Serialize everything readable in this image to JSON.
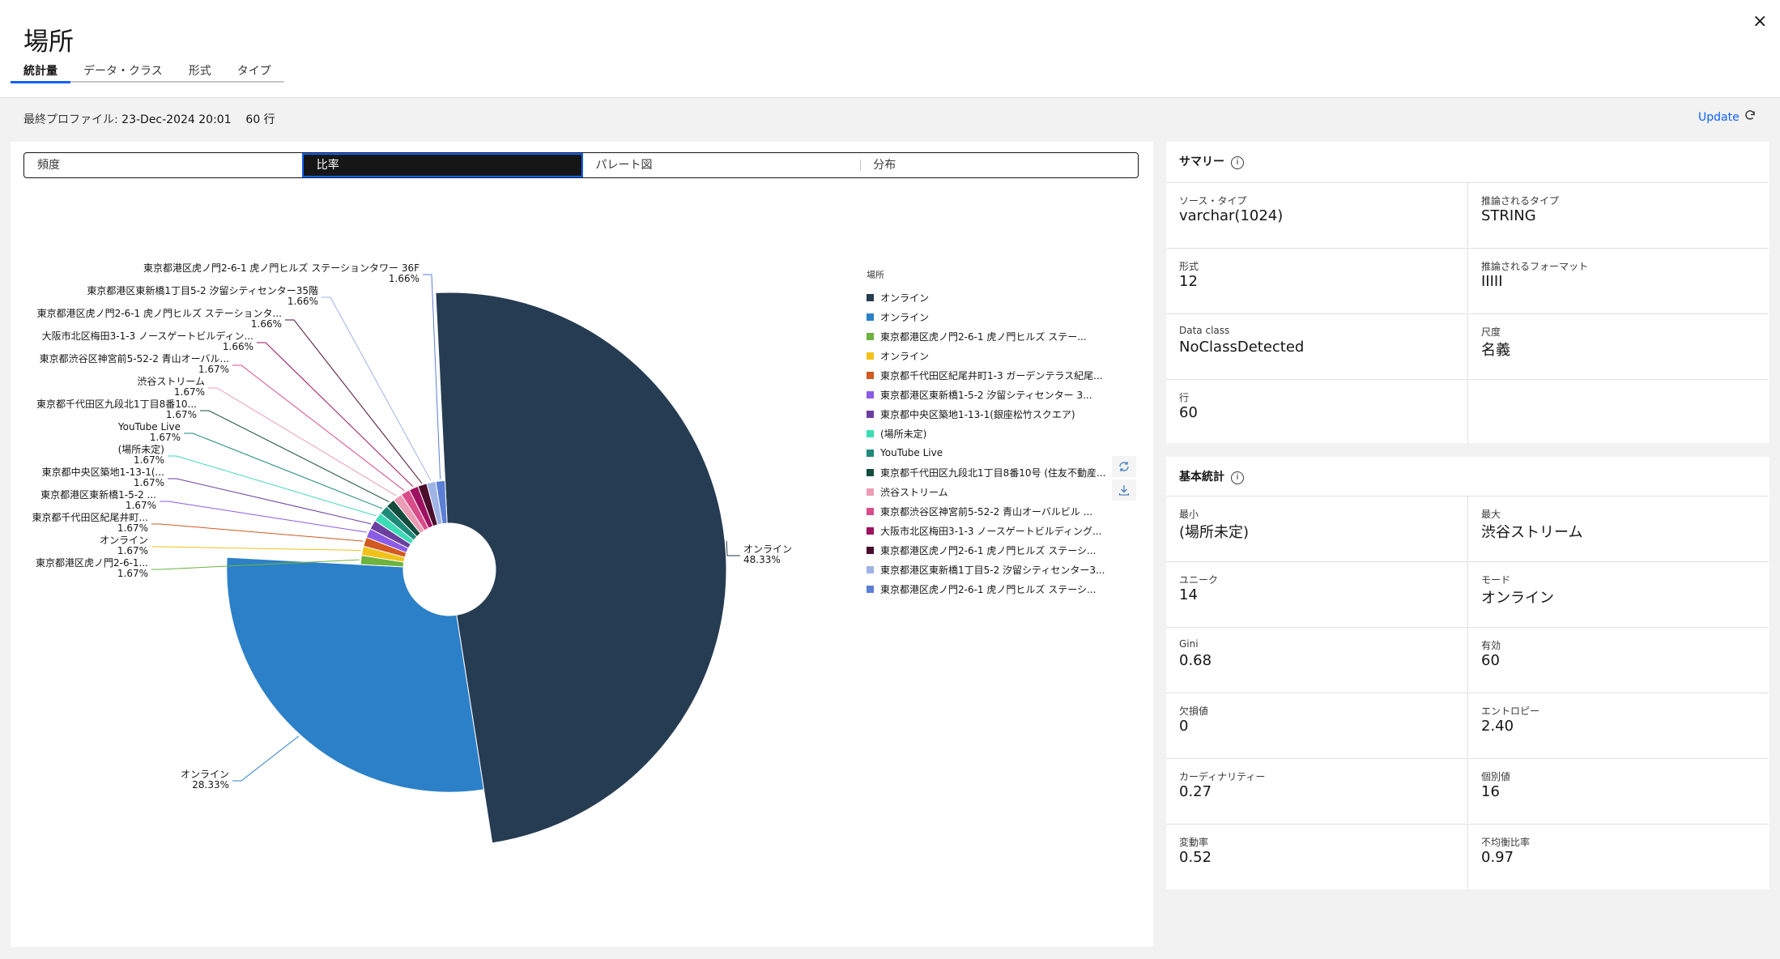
{
  "header": {
    "title": "場所",
    "close": "×"
  },
  "tabs": [
    "統計量",
    "データ・クラス",
    "形式",
    "タイプ"
  ],
  "info": {
    "label": "最終プロファイル: ",
    "date": "23-Dec-2024 20:01",
    "rows": "60 行",
    "update": "Update"
  },
  "switcher": [
    "頻度",
    "比率",
    "パレート図",
    "分布"
  ],
  "chart_data": {
    "type": "pie",
    "legend_title": "場所",
    "slices": [
      {
        "label": "オンライン",
        "value": 48.33,
        "label_text": "オンライン",
        "pct_text": "48.33%",
        "color": "#263c52"
      },
      {
        "label": "オンライン",
        "value": 28.33,
        "label_text": "オンライン",
        "pct_text": "28.33%",
        "color": "#2c80c8"
      },
      {
        "label": "東京都港区虎ノ門2-6-1 虎ノ門ヒルズ ステー...",
        "value": 1.67,
        "label_text": "東京都港区虎ノ門2-6-1...",
        "pct_text": "1.67%",
        "color": "#6db33f"
      },
      {
        "label": "オンライン",
        "value": 1.67,
        "label_text": "オンライン",
        "pct_text": "1.67%",
        "color": "#f1c21b"
      },
      {
        "label": "東京都千代田区紀尾井町1-3 ガーデンテラス紀尾...",
        "value": 1.67,
        "label_text": "東京都千代田区紀尾井町...",
        "pct_text": "1.67%",
        "color": "#d2591f"
      },
      {
        "label": "東京都港区東新橋1-5-2 汐留シティセンター 3...",
        "value": 1.67,
        "label_text": "東京都港区東新橋1-5-2 ...",
        "pct_text": "1.67%",
        "color": "#8a5ce6"
      },
      {
        "label": "東京都中央区築地1-13-1(銀座松竹スクエア)",
        "value": 1.67,
        "label_text": "東京都中央区築地1-13-1(...",
        "pct_text": "1.67%",
        "color": "#6b3fa0"
      },
      {
        "label": "(場所未定)",
        "value": 1.67,
        "label_text": "(場所未定)",
        "pct_text": "1.67%",
        "color": "#3ddbb6"
      },
      {
        "label": "YouTube Live",
        "value": 1.67,
        "label_text": "YouTube Live",
        "pct_text": "1.67%",
        "color": "#1f8a7a"
      },
      {
        "label": "東京都千代田区九段北1丁目8番10号 (住友不動産...",
        "value": 1.67,
        "label_text": "東京都千代田区九段北1丁目8番10...",
        "pct_text": "1.67%",
        "color": "#144c3c"
      },
      {
        "label": "渋谷ストリーム",
        "value": 1.67,
        "label_text": "渋谷ストリーム",
        "pct_text": "1.67%",
        "color": "#eb9bb4"
      },
      {
        "label": "東京都渋谷区神宮前5-52-2 青山オーバルビル ...",
        "value": 1.67,
        "label_text": "東京都渋谷区神宮前5-52-2 青山オーバル...",
        "pct_text": "1.67%",
        "color": "#d94c8a"
      },
      {
        "label": "大阪市北区梅田3-1-3 ノースゲートビルディング...",
        "value": 1.66,
        "label_text": "大阪市北区梅田3-1-3 ノースゲートビルディン...",
        "pct_text": "1.66%",
        "color": "#9e1160"
      },
      {
        "label": "東京都港区虎ノ門2-6-1 虎ノ門ヒルズ ステーシ...",
        "value": 1.66,
        "label_text": "東京都港区虎ノ門2-6-1 虎ノ門ヒルズ ステーションタ...",
        "pct_text": "1.66%",
        "color": "#4a0e2c"
      },
      {
        "label": "東京都港区東新橋1丁目5-2 汐留シティセンター3...",
        "value": 1.66,
        "label_text": "東京都港区東新橋1丁目5-2 汐留シティセンター35階",
        "pct_text": "1.66%",
        "color": "#9fb3e6"
      },
      {
        "label": "東京都港区虎ノ門2-6-1 虎ノ門ヒルズ ステーシ...",
        "value": 1.66,
        "label_text": "東京都港区虎ノ門2-6-1 虎ノ門ヒルズ ステーションタワー 36F",
        "pct_text": "1.66%",
        "color": "#5b7fd6"
      }
    ]
  },
  "summary": {
    "title": "サマリー",
    "cells": [
      {
        "label": "ソース・タイプ",
        "value": "varchar(1024)"
      },
      {
        "label": "推論されるタイプ",
        "value": "STRING"
      },
      {
        "label": "形式",
        "value": "12"
      },
      {
        "label": "推論されるフォーマット",
        "value": "IIIII"
      },
      {
        "label": "Data class",
        "value": "NoClassDetected"
      },
      {
        "label": "尺度",
        "value": "名義"
      },
      {
        "label": "行",
        "value": "60"
      },
      {
        "label": "",
        "value": ""
      }
    ]
  },
  "stats": {
    "title": "基本統計",
    "cells": [
      {
        "label": "最小",
        "value": "(場所未定)"
      },
      {
        "label": "最大",
        "value": "渋谷ストリーム"
      },
      {
        "label": "ユニーク",
        "value": "14"
      },
      {
        "label": "モード",
        "value": "オンライン"
      },
      {
        "label": "Gini",
        "value": "0.68"
      },
      {
        "label": "有効",
        "value": "60"
      },
      {
        "label": "欠損値",
        "value": "0"
      },
      {
        "label": "エントロピー",
        "value": "2.40"
      },
      {
        "label": "カーディナリティー",
        "value": "0.27"
      },
      {
        "label": "個別値",
        "value": "16"
      },
      {
        "label": "変動率",
        "value": "0.52"
      },
      {
        "label": "不均衡比率",
        "value": "0.97"
      }
    ]
  }
}
